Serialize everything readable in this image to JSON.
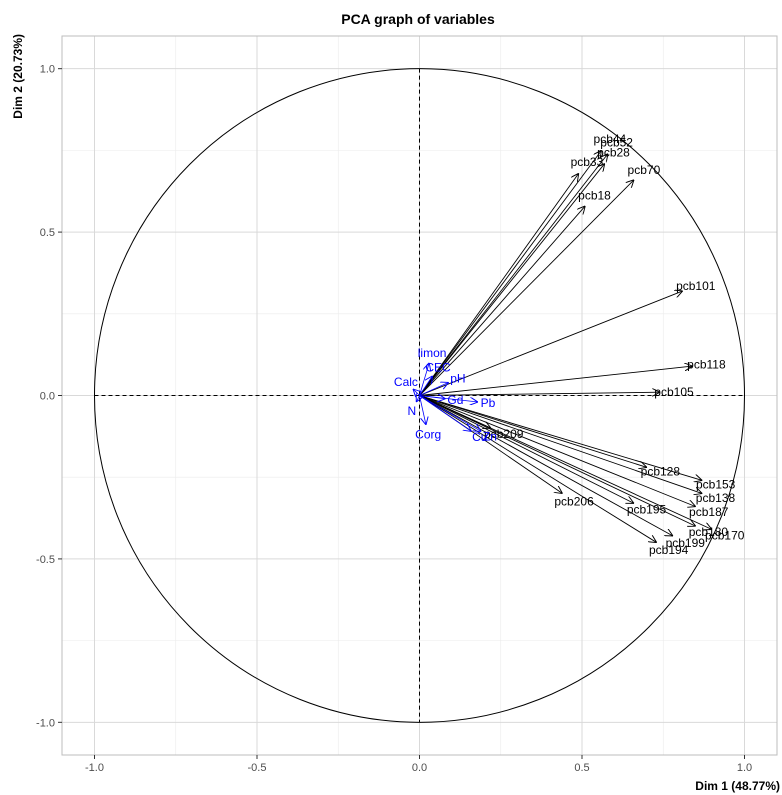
{
  "chart_data": {
    "type": "scatter",
    "title": "PCA graph of variables",
    "xlabel": "Dim 1 (48.77%)",
    "ylabel": "Dim 2 (20.73%)",
    "xlim": [
      -1.1,
      1.1
    ],
    "ylim": [
      -1.1,
      1.1
    ],
    "x_ticks": [
      -1.0,
      -0.5,
      0.0,
      0.5,
      1.0
    ],
    "y_ticks": [
      -1.0,
      -0.5,
      0.0,
      0.5,
      1.0
    ],
    "x_tick_labels": [
      "-1.0",
      "-0.5",
      "0.0",
      "0.5",
      "1.0"
    ],
    "y_tick_labels": [
      "-1.0",
      "-0.5",
      "0.0",
      "0.5",
      "1.0"
    ],
    "grid": true,
    "unit_circle": true,
    "variables": [
      {
        "name": "pcb44",
        "x": 0.56,
        "y": 0.75,
        "color": "#000000"
      },
      {
        "name": "pcb52",
        "x": 0.58,
        "y": 0.74,
        "color": "#000000"
      },
      {
        "name": "pcb28",
        "x": 0.57,
        "y": 0.71,
        "color": "#000000"
      },
      {
        "name": "pcb33",
        "x": 0.49,
        "y": 0.68,
        "color": "#000000"
      },
      {
        "name": "pcb70",
        "x": 0.66,
        "y": 0.66,
        "color": "#000000"
      },
      {
        "name": "pcb18",
        "x": 0.51,
        "y": 0.58,
        "color": "#000000"
      },
      {
        "name": "pcb101",
        "x": 0.81,
        "y": 0.32,
        "color": "#000000"
      },
      {
        "name": "pcb118",
        "x": 0.84,
        "y": 0.09,
        "color": "#000000"
      },
      {
        "name": "pcb105",
        "x": 0.74,
        "y": 0.01,
        "color": "#000000"
      },
      {
        "name": "pcb128",
        "x": 0.7,
        "y": -0.22,
        "color": "#000000"
      },
      {
        "name": "pcb153",
        "x": 0.87,
        "y": -0.26,
        "color": "#000000"
      },
      {
        "name": "pcb138",
        "x": 0.87,
        "y": -0.3,
        "color": "#000000"
      },
      {
        "name": "pcb187",
        "x": 0.85,
        "y": -0.34,
        "color": "#000000"
      },
      {
        "name": "pcb180",
        "x": 0.85,
        "y": -0.4,
        "color": "#000000"
      },
      {
        "name": "pcb170",
        "x": 0.9,
        "y": -0.41,
        "color": "#000000"
      },
      {
        "name": "pcb195",
        "x": 0.66,
        "y": -0.33,
        "color": "#000000"
      },
      {
        "name": "pcb199",
        "x": 0.78,
        "y": -0.43,
        "color": "#000000"
      },
      {
        "name": "pcb194",
        "x": 0.73,
        "y": -0.45,
        "color": "#000000"
      },
      {
        "name": "pcb206",
        "x": 0.44,
        "y": -0.3,
        "color": "#000000"
      },
      {
        "name": "pcb209",
        "x": 0.22,
        "y": -0.1,
        "color": "#000000"
      },
      {
        "name": "limon",
        "x": 0.03,
        "y": 0.1,
        "color": "#0000ff"
      },
      {
        "name": "CEC",
        "x": 0.04,
        "y": 0.06,
        "color": "#0000ff"
      },
      {
        "name": "pH",
        "x": 0.09,
        "y": 0.04,
        "color": "#0000ff"
      },
      {
        "name": "Calc",
        "x": -0.02,
        "y": 0.02,
        "color": "#0000ff"
      },
      {
        "name": "N",
        "x": -0.01,
        "y": -0.02,
        "color": "#0000ff"
      },
      {
        "name": "Gd",
        "x": 0.08,
        "y": -0.01,
        "color": "#0000ff"
      },
      {
        "name": "Pb",
        "x": 0.18,
        "y": -0.02,
        "color": "#0000ff"
      },
      {
        "name": "Corg",
        "x": 0.02,
        "y": -0.09,
        "color": "#0000ff"
      },
      {
        "name": "Cu",
        "x": 0.16,
        "y": -0.11,
        "color": "#0000ff"
      },
      {
        "name": "Zn",
        "x": 0.19,
        "y": -0.11,
        "color": "#0000ff"
      }
    ]
  }
}
